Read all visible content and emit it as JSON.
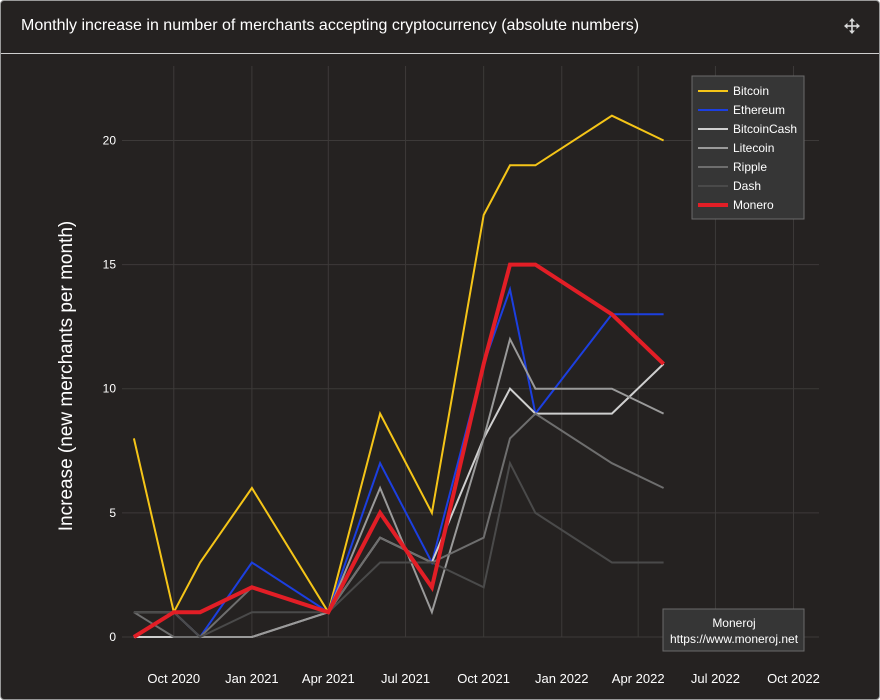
{
  "header": {
    "title": "Monthly increase in number of merchants accepting cryptocurrency (absolute numbers)",
    "move_icon": "move-arrows-icon"
  },
  "chart_data": {
    "type": "line",
    "xlabel": "",
    "ylabel": "Increase (new merchants per month)",
    "xlim": [
      "2020-08-01",
      "2022-10-31"
    ],
    "ylim": [
      0,
      23
    ],
    "x_ticks": [
      {
        "date": "2020-10-01",
        "label": "Oct 2020"
      },
      {
        "date": "2021-01-01",
        "label": "Jan 2021"
      },
      {
        "date": "2021-04-01",
        "label": "Apr 2021"
      },
      {
        "date": "2021-07-01",
        "label": "Jul 2021"
      },
      {
        "date": "2021-10-01",
        "label": "Oct 2021"
      },
      {
        "date": "2022-01-01",
        "label": "Jan 2022"
      },
      {
        "date": "2022-04-01",
        "label": "Apr 2022"
      },
      {
        "date": "2022-07-01",
        "label": "Jul 2022"
      },
      {
        "date": "2022-10-01",
        "label": "Oct 2022"
      }
    ],
    "y_ticks": [
      0,
      5,
      10,
      15,
      20
    ],
    "grid": true,
    "legend_position": "top-right",
    "x": [
      "2020-08-15",
      "2020-10-01",
      "2020-11-01",
      "2020-12-01",
      "2021-01-01",
      "2021-02-01",
      "2021-03-01",
      "2021-04-01",
      "2021-05-01",
      "2021-06-01",
      "2021-07-01",
      "2021-08-01",
      "2021-09-01",
      "2021-10-01",
      "2021-11-01",
      "2021-12-01",
      "2022-01-01",
      "2022-02-01",
      "2022-03-01",
      "2022-04-01",
      "2022-05-01"
    ],
    "series": [
      {
        "name": "Bitcoin",
        "color": "#f5c518",
        "width": 2,
        "values": [
          8,
          1,
          3,
          null,
          6,
          null,
          null,
          1,
          null,
          9,
          null,
          5,
          null,
          17,
          19,
          19,
          null,
          null,
          21,
          null,
          20
        ]
      },
      {
        "name": "Ethereum",
        "color": "#1c3fe0",
        "width": 2,
        "values": [
          0,
          1,
          0,
          null,
          3,
          null,
          null,
          1,
          null,
          7,
          null,
          3,
          null,
          11,
          14,
          9,
          null,
          null,
          13,
          null,
          13
        ]
      },
      {
        "name": "BitcoinCash",
        "color": "#cfcfcf",
        "width": 2,
        "values": [
          0,
          0,
          0,
          null,
          0,
          null,
          null,
          1,
          null,
          4,
          null,
          3,
          null,
          8,
          10,
          9,
          null,
          null,
          9,
          null,
          11
        ]
      },
      {
        "name": "Litecoin",
        "color": "#9a9a9a",
        "width": 2,
        "values": [
          1,
          1,
          0,
          null,
          0,
          null,
          null,
          1,
          null,
          6,
          null,
          1,
          null,
          8,
          12,
          10,
          null,
          null,
          10,
          null,
          9
        ]
      },
      {
        "name": "Ripple",
        "color": "#6e6e6e",
        "width": 2,
        "values": [
          1,
          0,
          0,
          null,
          2,
          null,
          null,
          1,
          null,
          4,
          null,
          3,
          null,
          4,
          8,
          9,
          null,
          null,
          7,
          null,
          6
        ]
      },
      {
        "name": "Dash",
        "color": "#4a4a4a",
        "width": 2,
        "values": [
          1,
          1,
          0,
          null,
          1,
          null,
          null,
          1,
          null,
          3,
          null,
          3,
          null,
          2,
          7,
          5,
          null,
          null,
          3,
          null,
          3
        ]
      },
      {
        "name": "Monero",
        "color": "#e21e26",
        "width": 4,
        "values": [
          0,
          1,
          1,
          null,
          2,
          null,
          null,
          1,
          null,
          5,
          null,
          2,
          null,
          11,
          15,
          15,
          null,
          null,
          13,
          null,
          11
        ]
      }
    ],
    "annotation": {
      "lines": [
        "Moneroj",
        "https://www.moneroj.net"
      ],
      "position": "bottom-right"
    }
  }
}
